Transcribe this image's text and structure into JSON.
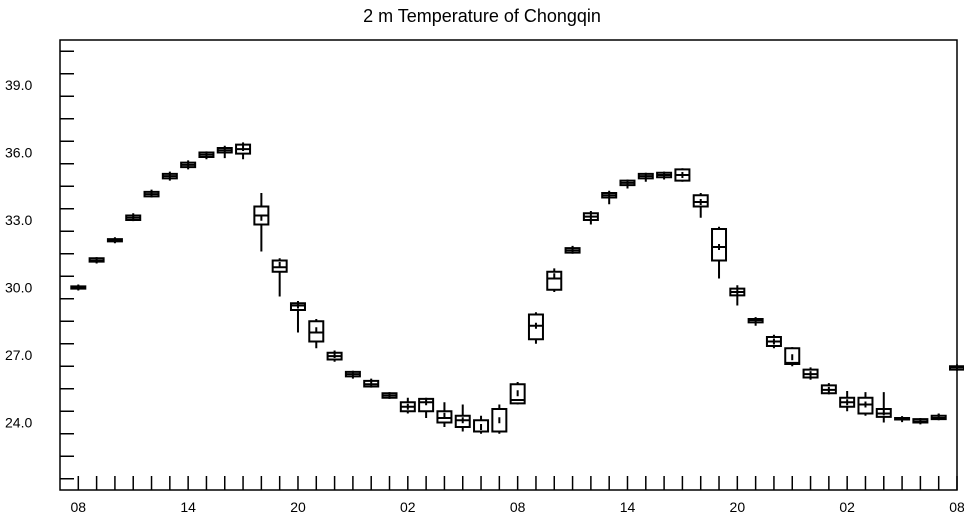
{
  "chart_data": {
    "type": "boxplot",
    "title": "2 m Temperature of Chongqin",
    "xlabel": "",
    "ylabel": "",
    "ylim": [
      21.0,
      41.0
    ],
    "y_ticks": [
      "24.0",
      "27.0",
      "30.0",
      "33.0",
      "36.0",
      "39.0"
    ],
    "x_range": [
      -1.0,
      48.0
    ],
    "x_ticks": [
      {
        "x": 0,
        "label": "08"
      },
      {
        "x": 6,
        "label": "14"
      },
      {
        "x": 12,
        "label": "20"
      },
      {
        "x": 18,
        "label": "02"
      },
      {
        "x": 24,
        "label": "08"
      },
      {
        "x": 30,
        "label": "14"
      },
      {
        "x": 36,
        "label": "20"
      },
      {
        "x": 42,
        "label": "02"
      },
      {
        "x": 48,
        "label": "08"
      }
    ],
    "box_color": "#000000",
    "grid": false,
    "series": [
      {
        "boxes": [
          {
            "x": 0,
            "min": 29.9,
            "q1": 29.95,
            "median": 30.0,
            "q3": 30.05,
            "max": 30.1,
            "mean": 30.0
          },
          {
            "x": 1,
            "min": 31.1,
            "q1": 31.15,
            "median": 31.2,
            "q3": 31.3,
            "max": 31.35,
            "mean": 31.2
          },
          {
            "x": 2,
            "min": 32.0,
            "q1": 32.05,
            "median": 32.1,
            "q3": 32.15,
            "max": 32.2,
            "mean": 32.1
          },
          {
            "x": 3,
            "min": 32.95,
            "q1": 33.0,
            "median": 33.1,
            "q3": 33.2,
            "max": 33.3,
            "mean": 33.1
          },
          {
            "x": 4,
            "min": 34.0,
            "q1": 34.05,
            "median": 34.15,
            "q3": 34.25,
            "max": 34.35,
            "mean": 34.15
          },
          {
            "x": 5,
            "min": 34.75,
            "q1": 34.85,
            "median": 34.95,
            "q3": 35.05,
            "max": 35.15,
            "mean": 34.95
          },
          {
            "x": 6,
            "min": 35.25,
            "q1": 35.35,
            "median": 35.45,
            "q3": 35.55,
            "max": 35.65,
            "mean": 35.45
          },
          {
            "x": 7,
            "min": 35.7,
            "q1": 35.8,
            "median": 35.9,
            "q3": 36.0,
            "max": 36.05,
            "mean": 35.9
          },
          {
            "x": 8,
            "min": 35.75,
            "q1": 36.0,
            "median": 36.1,
            "q3": 36.2,
            "max": 36.3,
            "mean": 36.1
          },
          {
            "x": 9,
            "min": 35.7,
            "q1": 35.95,
            "median": 36.15,
            "q3": 36.35,
            "max": 36.45,
            "mean": 36.2
          },
          {
            "x": 10,
            "min": 31.6,
            "q1": 32.8,
            "median": 33.2,
            "q3": 33.6,
            "max": 34.2,
            "mean": 33.1
          },
          {
            "x": 11,
            "min": 29.6,
            "q1": 30.7,
            "median": 30.9,
            "q3": 31.2,
            "max": 31.3,
            "mean": 31.0
          },
          {
            "x": 12,
            "min": 28.0,
            "q1": 29.0,
            "median": 29.2,
            "q3": 29.3,
            "max": 29.4,
            "mean": 29.2
          },
          {
            "x": 13,
            "min": 27.3,
            "q1": 27.6,
            "median": 28.0,
            "q3": 28.5,
            "max": 28.6,
            "mean": 28.1
          },
          {
            "x": 14,
            "min": 26.7,
            "q1": 26.8,
            "median": 26.95,
            "q3": 27.1,
            "max": 27.2,
            "mean": 27.0
          },
          {
            "x": 15,
            "min": 25.95,
            "q1": 26.05,
            "median": 26.15,
            "q3": 26.25,
            "max": 26.3,
            "mean": 26.15
          },
          {
            "x": 16,
            "min": 25.55,
            "q1": 25.6,
            "median": 25.7,
            "q3": 25.85,
            "max": 25.95,
            "mean": 25.7
          },
          {
            "x": 17,
            "min": 25.05,
            "q1": 25.1,
            "median": 25.2,
            "q3": 25.3,
            "max": 25.35,
            "mean": 25.2
          },
          {
            "x": 18,
            "min": 24.4,
            "q1": 24.5,
            "median": 24.7,
            "q3": 24.9,
            "max": 25.1,
            "mean": 24.7
          },
          {
            "x": 19,
            "min": 24.2,
            "q1": 24.5,
            "median": 24.9,
            "q3": 25.05,
            "max": 25.1,
            "mean": 24.9
          },
          {
            "x": 20,
            "min": 23.8,
            "q1": 24.0,
            "median": 24.2,
            "q3": 24.5,
            "max": 24.9,
            "mean": 24.3
          },
          {
            "x": 21,
            "min": 23.6,
            "q1": 23.8,
            "median": 24.1,
            "q3": 24.3,
            "max": 24.8,
            "mean": 24.1
          },
          {
            "x": 22,
            "min": 23.5,
            "q1": 23.6,
            "median": 23.6,
            "q3": 24.1,
            "max": 24.3,
            "mean": 23.8
          },
          {
            "x": 23,
            "min": 23.5,
            "q1": 23.6,
            "median": 23.6,
            "q3": 24.6,
            "max": 24.8,
            "mean": 24.1
          },
          {
            "x": 24,
            "min": 24.8,
            "q1": 24.85,
            "median": 25.0,
            "q3": 25.7,
            "max": 25.8,
            "mean": 25.3
          },
          {
            "x": 25,
            "min": 27.5,
            "q1": 27.7,
            "median": 28.3,
            "q3": 28.8,
            "max": 28.9,
            "mean": 28.3
          },
          {
            "x": 26,
            "min": 29.8,
            "q1": 29.9,
            "median": 30.4,
            "q3": 30.7,
            "max": 30.85,
            "mean": 30.5
          },
          {
            "x": 27,
            "min": 31.5,
            "q1": 31.55,
            "median": 31.65,
            "q3": 31.75,
            "max": 31.85,
            "mean": 31.7
          },
          {
            "x": 28,
            "min": 32.8,
            "q1": 33.0,
            "median": 33.15,
            "q3": 33.3,
            "max": 33.4,
            "mean": 33.15
          },
          {
            "x": 29,
            "min": 33.7,
            "q1": 34.0,
            "median": 34.1,
            "q3": 34.2,
            "max": 34.3,
            "mean": 34.1
          },
          {
            "x": 30,
            "min": 34.4,
            "q1": 34.55,
            "median": 34.65,
            "q3": 34.75,
            "max": 34.8,
            "mean": 34.65
          },
          {
            "x": 31,
            "min": 34.7,
            "q1": 34.85,
            "median": 34.95,
            "q3": 35.05,
            "max": 35.1,
            "mean": 34.95
          },
          {
            "x": 32,
            "min": 34.8,
            "q1": 34.9,
            "median": 35.0,
            "q3": 35.1,
            "max": 35.15,
            "mean": 35.0
          },
          {
            "x": 33,
            "min": 34.7,
            "q1": 34.75,
            "median": 35.0,
            "q3": 35.25,
            "max": 35.3,
            "mean": 35.0
          },
          {
            "x": 34,
            "min": 33.1,
            "q1": 33.6,
            "median": 33.8,
            "q3": 34.1,
            "max": 34.2,
            "mean": 33.8
          },
          {
            "x": 35,
            "min": 30.4,
            "q1": 31.2,
            "median": 31.8,
            "q3": 32.6,
            "max": 32.7,
            "mean": 31.8
          },
          {
            "x": 36,
            "min": 29.2,
            "q1": 29.65,
            "median": 29.8,
            "q3": 29.95,
            "max": 30.1,
            "mean": 29.8
          },
          {
            "x": 37,
            "min": 28.3,
            "q1": 28.45,
            "median": 28.55,
            "q3": 28.6,
            "max": 28.65,
            "mean": 28.55
          },
          {
            "x": 38,
            "min": 27.3,
            "q1": 27.4,
            "median": 27.6,
            "q3": 27.8,
            "max": 27.9,
            "mean": 27.6
          },
          {
            "x": 39,
            "min": 26.5,
            "q1": 26.6,
            "median": 26.65,
            "q3": 27.3,
            "max": 27.35,
            "mean": 26.9
          },
          {
            "x": 40,
            "min": 25.9,
            "q1": 26.0,
            "median": 26.15,
            "q3": 26.35,
            "max": 26.45,
            "mean": 26.15
          },
          {
            "x": 41,
            "min": 25.25,
            "q1": 25.3,
            "median": 25.45,
            "q3": 25.65,
            "max": 25.75,
            "mean": 25.45
          },
          {
            "x": 42,
            "min": 24.5,
            "q1": 24.7,
            "median": 24.9,
            "q3": 25.1,
            "max": 25.4,
            "mean": 24.9
          },
          {
            "x": 43,
            "min": 24.3,
            "q1": 24.4,
            "median": 24.8,
            "q3": 25.1,
            "max": 25.35,
            "mean": 24.8
          },
          {
            "x": 44,
            "min": 24.0,
            "q1": 24.25,
            "median": 24.4,
            "q3": 24.6,
            "max": 25.35,
            "mean": 24.45
          },
          {
            "x": 45,
            "min": 24.1,
            "q1": 24.15,
            "median": 24.15,
            "q3": 24.2,
            "max": 24.2,
            "mean": 24.15
          },
          {
            "x": 46,
            "min": 23.95,
            "q1": 24.0,
            "median": 24.05,
            "q3": 24.15,
            "max": 24.2,
            "mean": 24.05
          },
          {
            "x": 47,
            "min": 24.1,
            "q1": 24.15,
            "median": 24.2,
            "q3": 24.3,
            "max": 24.4,
            "mean": 24.25
          },
          {
            "x": 48,
            "min": 26.3,
            "q1": 26.35,
            "median": 26.45,
            "q3": 26.5,
            "max": 26.55,
            "mean": 26.45
          }
        ]
      }
    ]
  }
}
